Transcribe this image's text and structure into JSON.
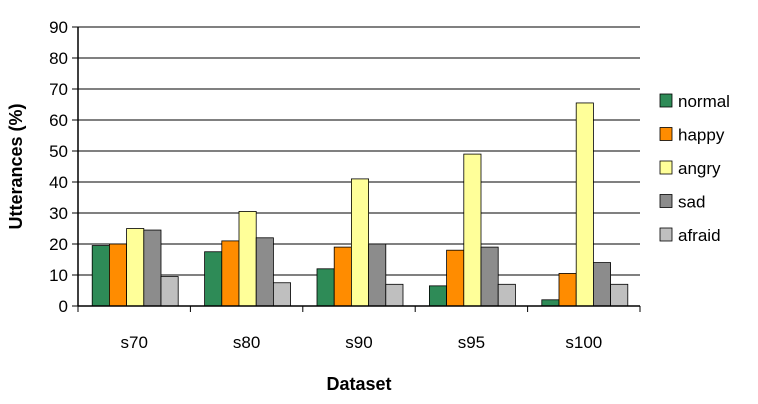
{
  "chart_data": {
    "type": "bar",
    "categories": [
      "s70",
      "s80",
      "s90",
      "s95",
      "s100"
    ],
    "series": [
      {
        "name": "normal",
        "color": "#2e8b57",
        "values": [
          19.5,
          17.5,
          12,
          6.5,
          2
        ]
      },
      {
        "name": "happy",
        "color": "#ff8c00",
        "values": [
          20,
          21,
          19,
          18,
          10.5
        ]
      },
      {
        "name": "angry",
        "color": "#ffff99",
        "values": [
          25,
          30.5,
          41,
          49,
          65.5
        ]
      },
      {
        "name": "sad",
        "color": "#8c8c8c",
        "values": [
          24.5,
          22,
          20,
          19,
          14
        ]
      },
      {
        "name": "afraid",
        "color": "#bfbfbf",
        "values": [
          9.5,
          7.5,
          7,
          7,
          7
        ]
      }
    ],
    "xlabel": "Dataset",
    "ylabel": "Utterances (%)",
    "ylim": [
      0,
      90
    ],
    "yticks": [
      0,
      10,
      20,
      30,
      40,
      50,
      60,
      70,
      80,
      90
    ],
    "grid": true,
    "legend_position": "right"
  }
}
